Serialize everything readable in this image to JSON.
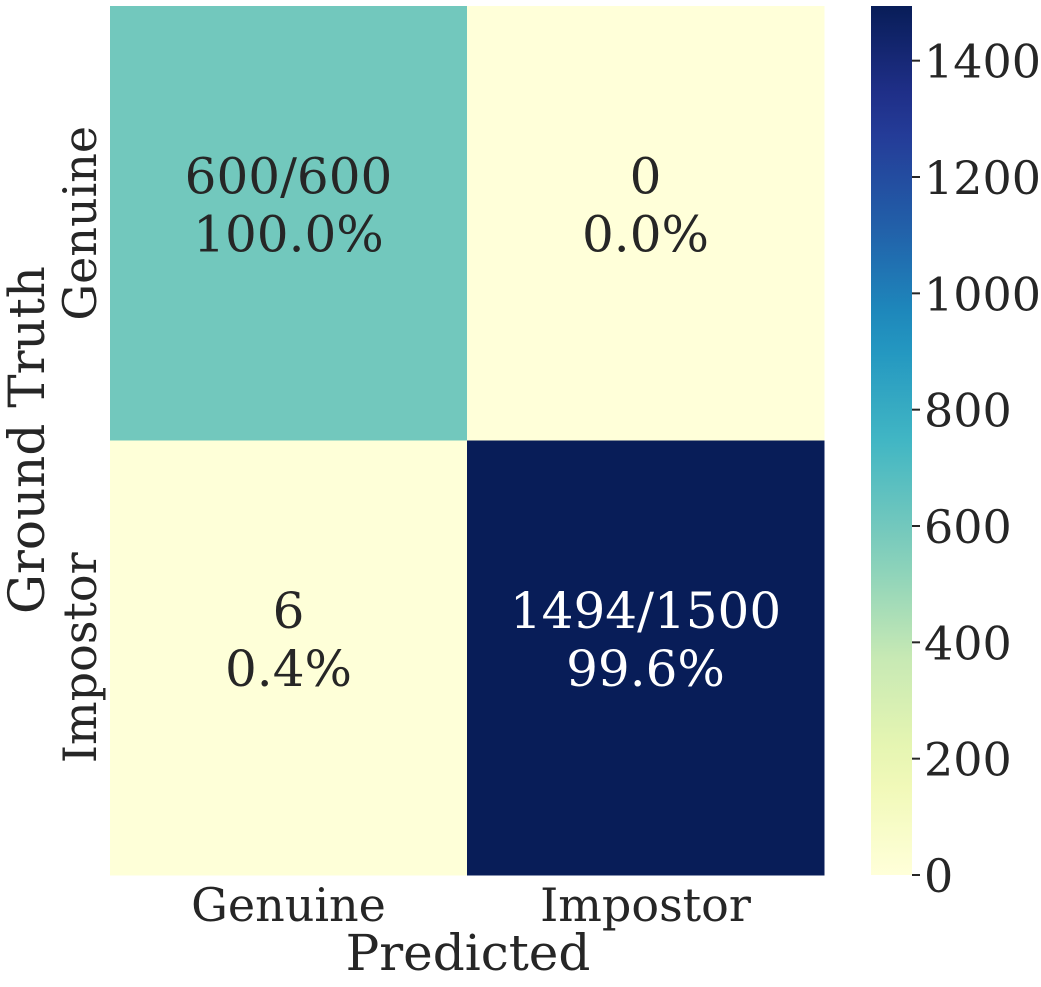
{
  "chart_data": {
    "type": "heatmap",
    "xlabel": "Predicted",
    "ylabel": "Ground Truth",
    "x_categories": [
      "Genuine",
      "Impostor"
    ],
    "y_categories": [
      "Genuine",
      "Impostor"
    ],
    "values": [
      [
        600,
        0
      ],
      [
        6,
        1494
      ]
    ],
    "cell_labels": [
      [
        [
          "600/600",
          "100.0%"
        ],
        [
          "0",
          "0.0%"
        ]
      ],
      [
        [
          "6",
          "0.4%"
        ],
        [
          "1494/1500",
          "99.6%"
        ]
      ]
    ],
    "colormap": "YlGnBu",
    "vmin": 0,
    "vmax": 1494,
    "colorbar_ticks": [
      0,
      200,
      400,
      600,
      800,
      1000,
      1200,
      1400
    ],
    "colorbar_tick_labels": [
      "0",
      "200",
      "400",
      "600",
      "800",
      "1000",
      "1200",
      "1400"
    ],
    "colormap_stops": [
      "#ffffd9",
      "#edf8b1",
      "#c7e9b4",
      "#7fcdbb",
      "#41b6c4",
      "#1d91c0",
      "#225ea8",
      "#253494",
      "#081d58"
    ],
    "dark_text_color": "#262626",
    "light_text_color": "#ffffff"
  }
}
